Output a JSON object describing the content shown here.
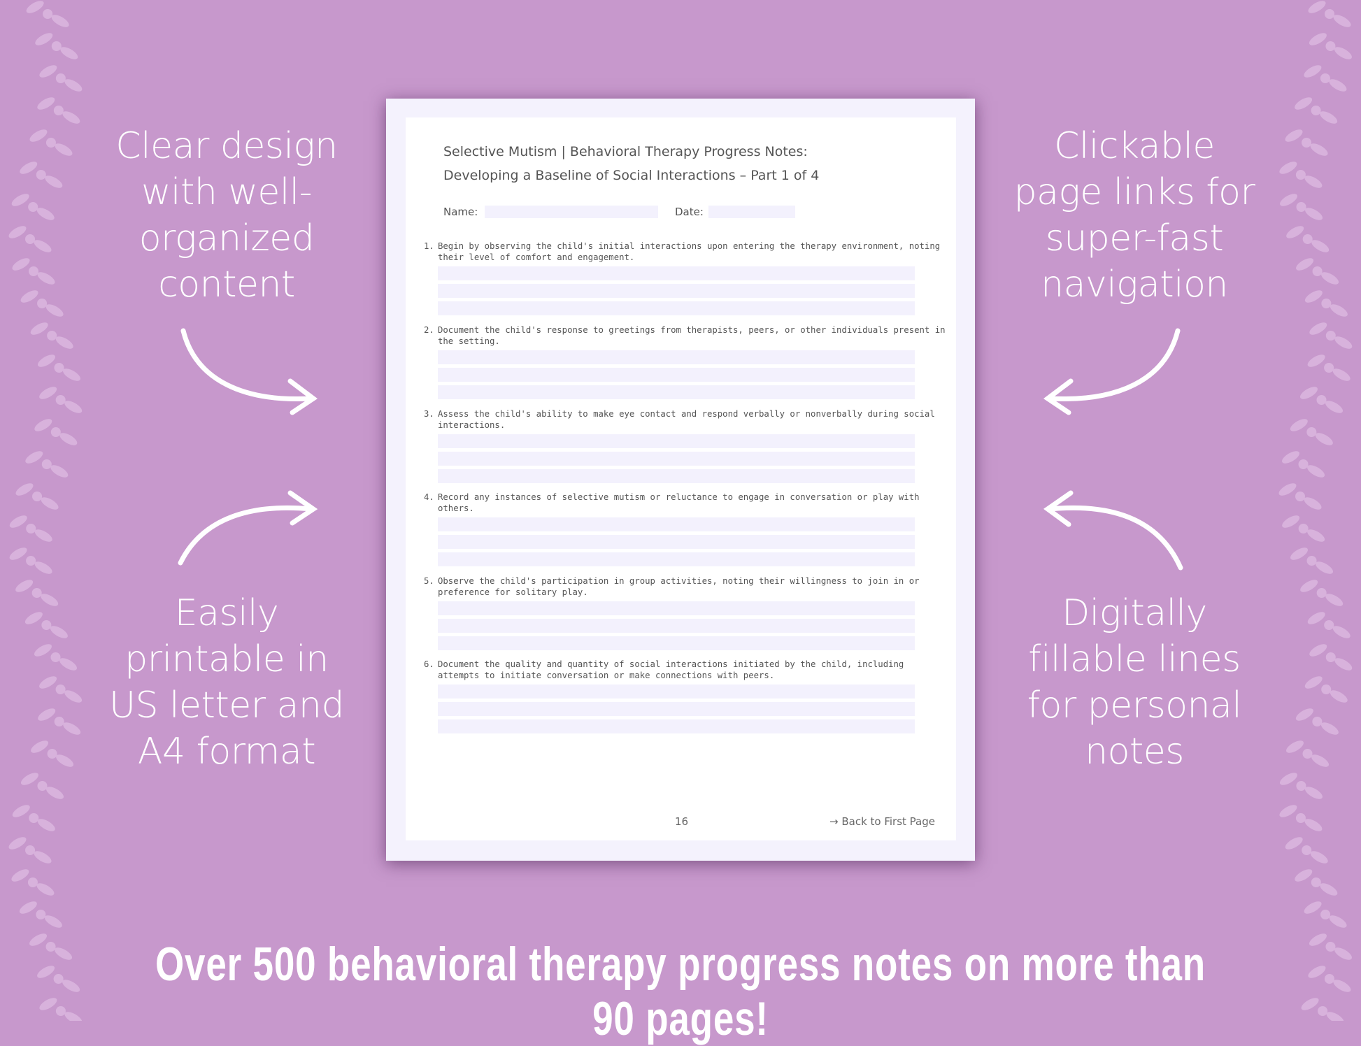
{
  "features": {
    "top_left": [
      "Clear design",
      "with well-",
      "organized",
      "content"
    ],
    "bottom_left": [
      "Easily",
      "printable in",
      "US letter and",
      "A4 format"
    ],
    "top_right": [
      "Clickable",
      "page links for",
      "super-fast",
      "navigation"
    ],
    "bottom_right": [
      "Digitally",
      "fillable lines",
      "for personal",
      "notes"
    ]
  },
  "document": {
    "title_line1": "Selective Mutism | Behavioral Therapy Progress Notes:",
    "title_line2": "Developing a Baseline of Social Interactions – Part 1 of 4",
    "name_label": "Name:",
    "date_label": "Date:",
    "questions": [
      {
        "num": "1.",
        "text": "Begin by observing the child's initial interactions upon entering the therapy environment, noting their level of comfort and engagement."
      },
      {
        "num": "2.",
        "text": "Document the child's response to greetings from therapists, peers, or other individuals present in the setting."
      },
      {
        "num": "3.",
        "text": "Assess the child's ability to make eye contact and respond verbally or nonverbally during social interactions."
      },
      {
        "num": "4.",
        "text": "Record any instances of selective mutism or reluctance to engage in conversation or play with others."
      },
      {
        "num": "5.",
        "text": "Observe the child's participation in group activities, noting their willingness to join in or preference for solitary play."
      },
      {
        "num": "6.",
        "text": "Document the quality and quantity of social interactions initiated by the child, including attempts to initiate conversation or make connections with peers."
      }
    ],
    "page_number": "16",
    "back_link": "→ Back to First Page"
  },
  "banner": "Over 500 behavioral therapy progress notes on more than 90 pages!",
  "colors": {
    "background": "#c798cc",
    "field": "#f3f1fd",
    "text": "#ffffff"
  }
}
